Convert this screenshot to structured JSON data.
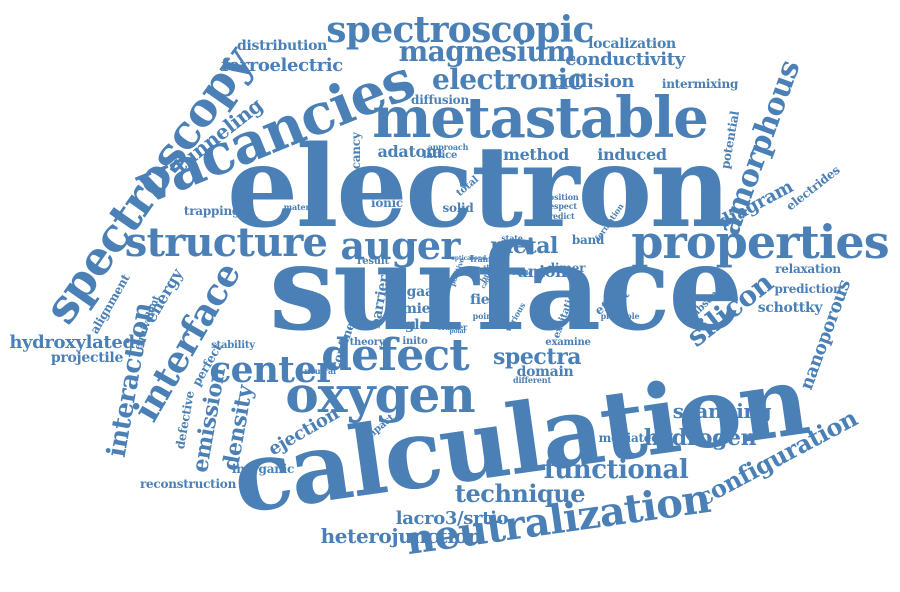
{
  "colors": {
    "word": "#4a80b6",
    "background": "#ffffff"
  },
  "words": [
    "electron",
    "surface",
    "calculation",
    "metastable",
    "vacancies",
    "properties",
    "structure",
    "spectroscopy",
    "spectroscopic",
    "auger",
    "neutralization",
    "oxygen",
    "defect",
    "interface",
    "amorphous",
    "center",
    "magnesium",
    "electronic",
    "silicon",
    "functional",
    "technique",
    "configuration",
    "interaction",
    "density",
    "emission",
    "hydrogen",
    "scanning",
    "spectra",
    "metal",
    "tunneling",
    "ferroelectric",
    "conductivity",
    "collision",
    "localization",
    "distribution",
    "heterojunction",
    "lacro3/srtio",
    "hydroxylated",
    "projectile",
    "diagram",
    "nanoporous",
    "ejection",
    "energy",
    "induced",
    "method",
    "adatom",
    "anion",
    "domain",
    "schottky",
    "prediction",
    "relaxation",
    "reconstruction",
    "inorganic",
    "mediated",
    "intermixing",
    "trapping",
    "electrides",
    "potential",
    "alignment",
    "defective",
    "perfect",
    "stability",
    "ionic",
    "solid",
    "mies",
    "glass",
    "field",
    "gaas",
    "barrier",
    "confined",
    "theory",
    "inito",
    "diffusion",
    "lattice",
    "vacancy",
    "material",
    "total",
    "band",
    "dimer",
    "result",
    "effect",
    "absence",
    "equivalent",
    "neutral",
    "impact",
    "different",
    "examine",
    "excitation",
    "state",
    "formation",
    "principle",
    "point",
    "various",
    "cluster",
    "position",
    "respect",
    "predict",
    "built",
    "approach",
    "frame",
    "bond",
    "optical",
    "positive",
    "study",
    "stable",
    "cage",
    "polar"
  ]
}
